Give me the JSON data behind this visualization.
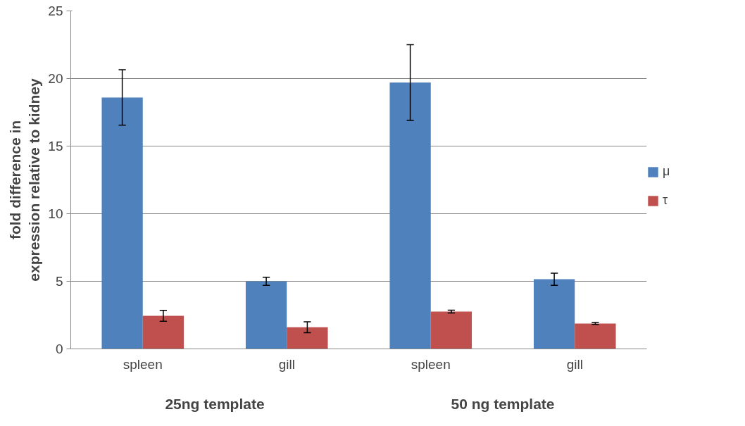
{
  "chart_data": {
    "type": "bar",
    "ylabel": "fold difference in expression relative to kidney",
    "categories": [
      "spleen",
      "gill",
      "spleen",
      "gill"
    ],
    "series": [
      {
        "name": "μ",
        "color": "#4f81bd",
        "values": [
          18.6,
          5.0,
          19.7,
          5.15
        ],
        "errors": [
          2.05,
          0.3,
          2.8,
          0.45
        ]
      },
      {
        "name": "τ",
        "color": "#c0504d",
        "values": [
          2.45,
          1.6,
          2.76,
          1.88
        ],
        "errors": [
          0.4,
          0.4,
          0.1,
          0.07
        ]
      }
    ],
    "annotations": [
      "25ng template",
      "50 ng template"
    ],
    "ylim": [
      0,
      25
    ],
    "yticks": [
      0,
      5,
      10,
      15,
      20,
      25
    ],
    "grid": "y",
    "legend": "right"
  }
}
